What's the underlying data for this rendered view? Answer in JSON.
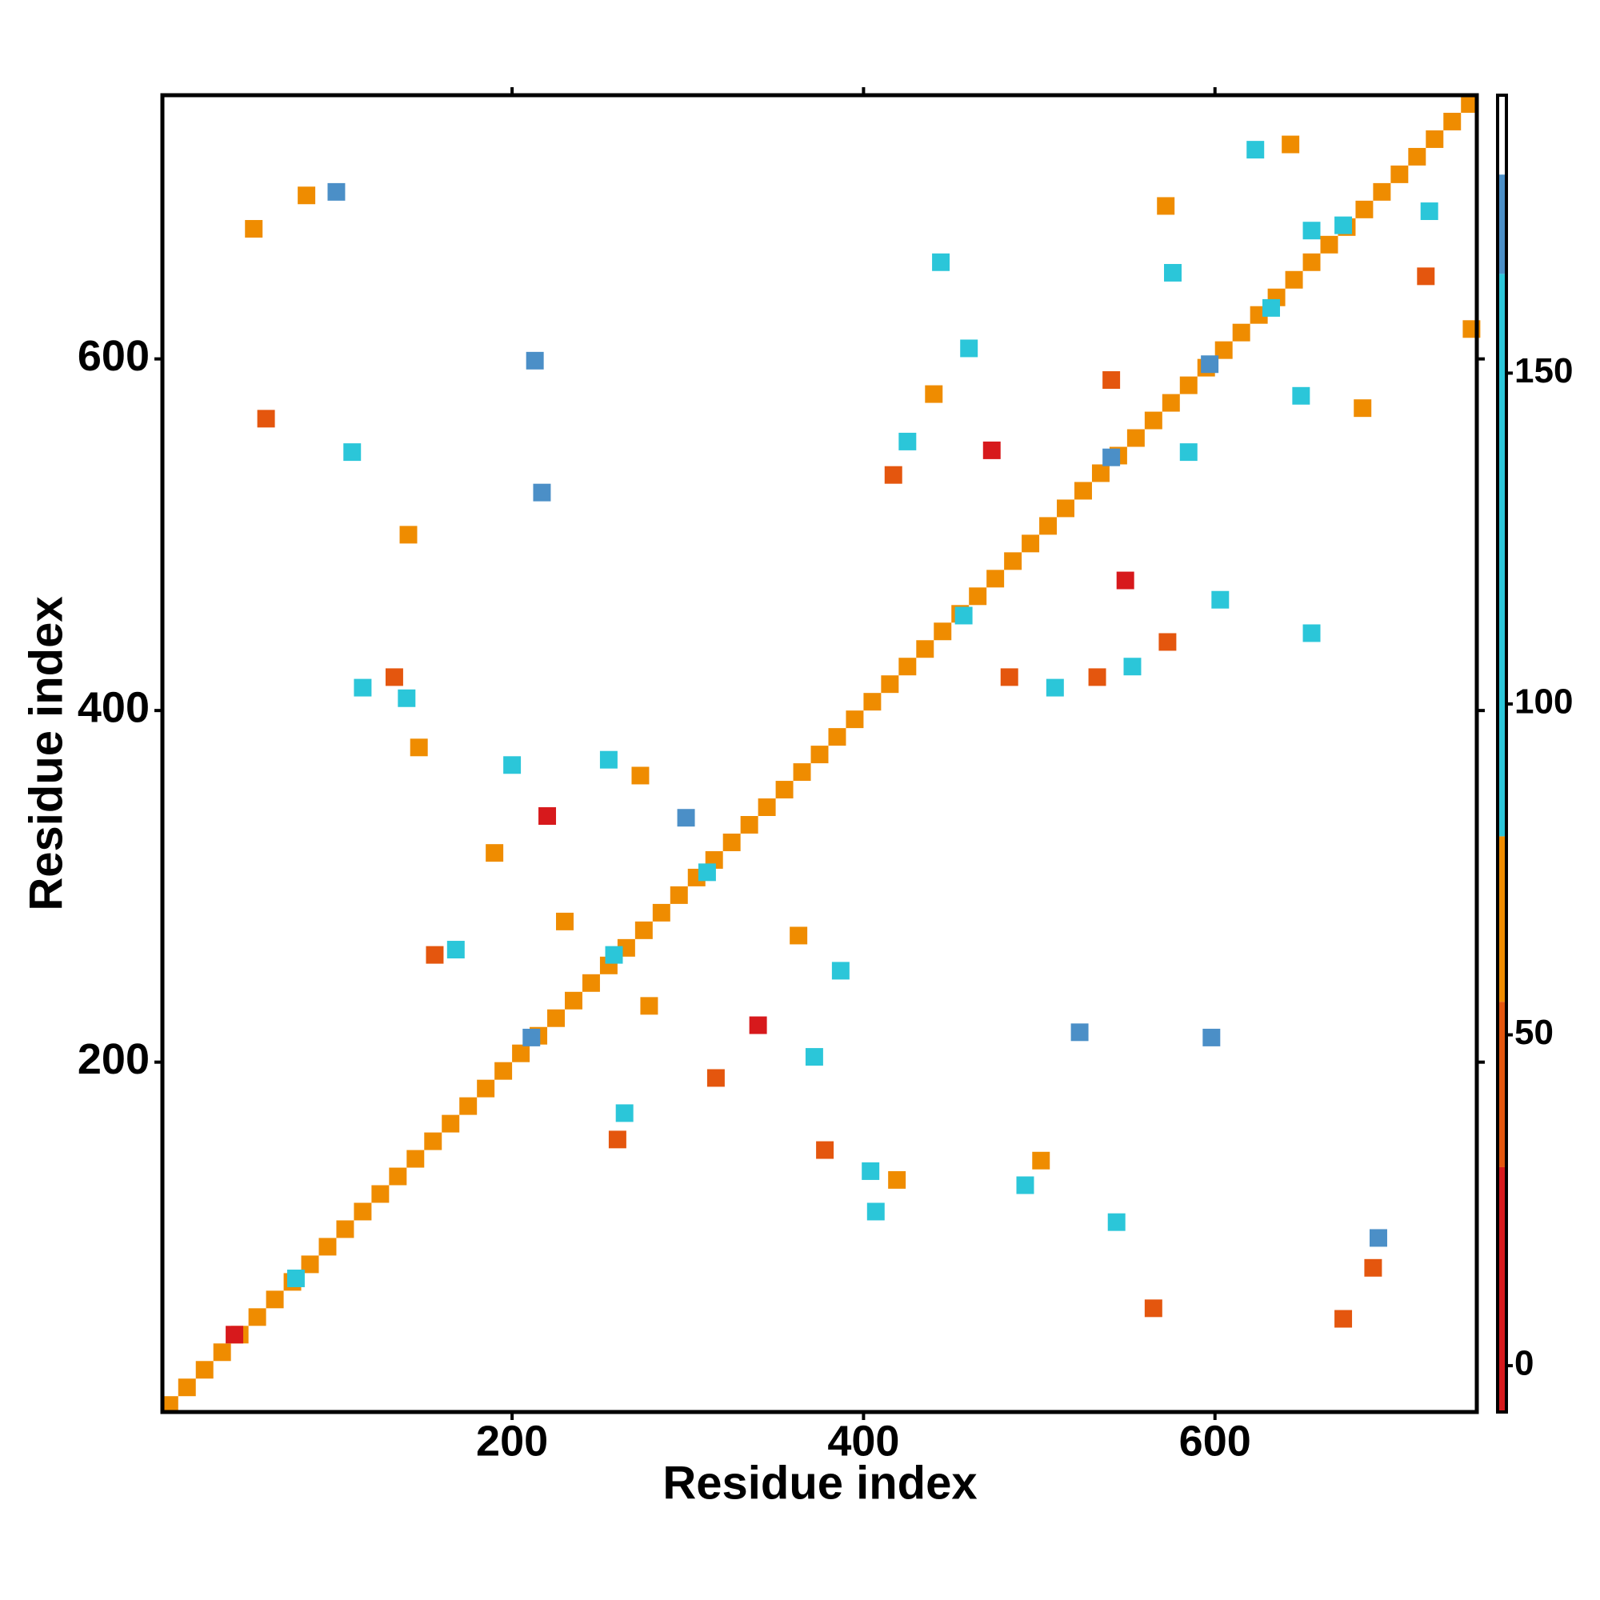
{
  "chart_data": {
    "type": "contact-map",
    "x_label": "Residue index",
    "y_label": "Residue index",
    "xlim": [
      1,
      749
    ],
    "ylim": [
      1,
      750
    ],
    "xticks": [
      200,
      400,
      600
    ],
    "yticks": [
      200,
      400,
      600
    ],
    "zlim": [
      -7,
      192
    ],
    "colorbar_ticks": [
      0,
      50,
      100,
      150
    ],
    "color_scale": [
      {
        "from": -7,
        "to": 30,
        "color": "#d7191c"
      },
      {
        "from": 30,
        "to": 55,
        "color": "#e4560e"
      },
      {
        "from": 55,
        "to": 80,
        "color": "#ef8c00"
      },
      {
        "from": 80,
        "to": 165,
        "color": "#2bc6d9"
      },
      {
        "from": 165,
        "to": 180,
        "color": "#4b8fc7"
      }
    ],
    "x": [
      5,
      15,
      25,
      35,
      45,
      55,
      65,
      75,
      85,
      95,
      105,
      115,
      125,
      135,
      145,
      155,
      165,
      175,
      185,
      195,
      205,
      215,
      225,
      235,
      245,
      255,
      265,
      275,
      285,
      295,
      305,
      315,
      325,
      335,
      345,
      355,
      365,
      375,
      385,
      395,
      405,
      415,
      425,
      435,
      445,
      455,
      465,
      475,
      485,
      495,
      505,
      515,
      525,
      535,
      545,
      555,
      565,
      575,
      585,
      595,
      605,
      615,
      625,
      635,
      645,
      655,
      665,
      675,
      685,
      695,
      705,
      715,
      725,
      735,
      745,
      83,
      100,
      53,
      60,
      213,
      217,
      141,
      109,
      115,
      133,
      140,
      147,
      220,
      200,
      255,
      273,
      299,
      190,
      230,
      156,
      168,
      278,
      444,
      460,
      440,
      473,
      417,
      425,
      541,
      572,
      576,
      623,
      643,
      655,
      720,
      722,
      746,
      649,
      684,
      585,
      549,
      603,
      655,
      573,
      553,
      533,
      483,
      509,
      340,
      363,
      387,
      372,
      523,
      598,
      501,
      492,
      404,
      419,
      407,
      378,
      264,
      260,
      316,
      693,
      690,
      673,
      565,
      544,
      211,
      77,
      258,
      311,
      541,
      632,
      597,
      457,
      673,
      42
    ],
    "y": [
      5,
      15,
      25,
      35,
      45,
      55,
      65,
      75,
      85,
      95,
      105,
      115,
      125,
      135,
      145,
      155,
      165,
      175,
      185,
      195,
      205,
      215,
      225,
      235,
      245,
      255,
      265,
      275,
      285,
      295,
      305,
      315,
      325,
      335,
      345,
      355,
      365,
      375,
      385,
      395,
      405,
      415,
      425,
      435,
      445,
      455,
      465,
      475,
      485,
      495,
      505,
      515,
      525,
      535,
      545,
      555,
      565,
      575,
      585,
      595,
      605,
      615,
      625,
      635,
      645,
      655,
      665,
      675,
      685,
      695,
      705,
      715,
      725,
      735,
      745,
      693,
      695,
      674,
      566,
      599,
      524,
      500,
      547,
      413,
      419,
      407,
      379,
      340,
      369,
      372,
      363,
      339,
      319,
      280,
      261,
      264,
      232,
      655,
      606,
      580,
      548,
      534,
      553,
      588,
      687,
      649,
      719,
      722,
      673,
      647,
      684,
      617,
      579,
      572,
      547,
      474,
      463,
      444,
      439,
      425,
      419,
      419,
      413,
      221,
      272,
      252,
      203,
      217,
      214,
      144,
      130,
      138,
      133,
      115,
      150,
      171,
      156,
      191,
      100,
      83,
      54,
      60,
      109,
      214,
      77,
      261,
      308,
      544,
      629,
      597,
      454,
      676,
      45
    ],
    "values": [
      60,
      60,
      60,
      60,
      60,
      60,
      60,
      60,
      60,
      60,
      60,
      60,
      60,
      60,
      60,
      60,
      60,
      60,
      60,
      60,
      60,
      60,
      60,
      60,
      60,
      60,
      60,
      60,
      60,
      60,
      60,
      60,
      60,
      60,
      60,
      60,
      60,
      60,
      60,
      60,
      60,
      60,
      60,
      60,
      60,
      60,
      60,
      60,
      60,
      60,
      60,
      60,
      60,
      60,
      60,
      60,
      60,
      60,
      60,
      60,
      60,
      60,
      60,
      60,
      60,
      60,
      60,
      60,
      60,
      60,
      60,
      60,
      60,
      60,
      60,
      60,
      170,
      60,
      40,
      170,
      170,
      60,
      100,
      100,
      40,
      100,
      60,
      10,
      100,
      100,
      60,
      170,
      60,
      60,
      40,
      100,
      60,
      100,
      100,
      60,
      10,
      40,
      100,
      40,
      60,
      100,
      100,
      60,
      100,
      40,
      100,
      60,
      100,
      60,
      100,
      10,
      100,
      100,
      40,
      100,
      40,
      40,
      100,
      10,
      60,
      100,
      100,
      170,
      170,
      60,
      100,
      100,
      60,
      100,
      40,
      100,
      40,
      40,
      170,
      40,
      40,
      40,
      100,
      170,
      100,
      100,
      100,
      170,
      100,
      170,
      100,
      100,
      10
    ]
  }
}
